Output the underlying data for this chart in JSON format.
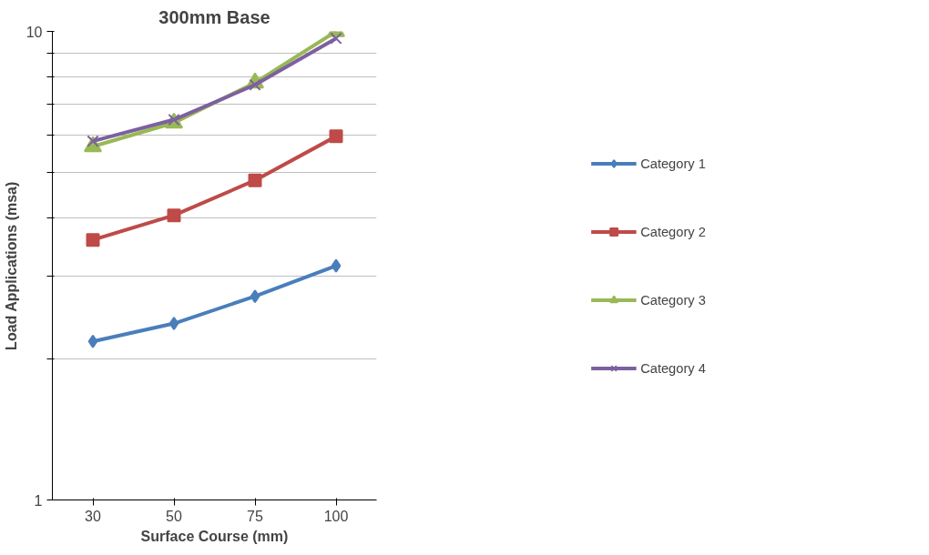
{
  "chart_data": {
    "type": "line",
    "title": "300mm Base",
    "xlabel": "Surface Course (mm)",
    "ylabel": "Load Applications (msa)",
    "categories": [
      "30",
      "50",
      "75",
      "100"
    ],
    "log": "y",
    "ylim": [
      1,
      10
    ],
    "yticks": [
      1,
      {
        "value": 2,
        "label": null
      },
      {
        "value": 3,
        "label": null
      },
      {
        "value": 4,
        "label": null
      },
      {
        "value": 5,
        "label": null
      },
      {
        "value": 6,
        "label": null
      },
      {
        "value": 7,
        "label": null
      },
      {
        "value": 8,
        "label": null
      },
      {
        "value": 9,
        "label": null
      },
      10
    ],
    "grid": "y",
    "legend": "right",
    "series": [
      {
        "name": "Category 1",
        "color": "#4a7ebb",
        "marker": "diamond",
        "values": [
          2.18,
          2.38,
          2.72,
          3.16
        ]
      },
      {
        "name": "Category 2",
        "color": "#be4b48",
        "marker": "square",
        "values": [
          3.59,
          4.05,
          4.81,
          5.97
        ]
      },
      {
        "name": "Category 3",
        "color": "#98b954",
        "marker": "triangle",
        "values": [
          5.68,
          6.38,
          7.77,
          10
        ]
      },
      {
        "name": "Category 4",
        "color": "#7d60a0",
        "marker": "cross",
        "values": [
          5.83,
          6.48,
          7.69,
          9.66
        ]
      }
    ]
  }
}
